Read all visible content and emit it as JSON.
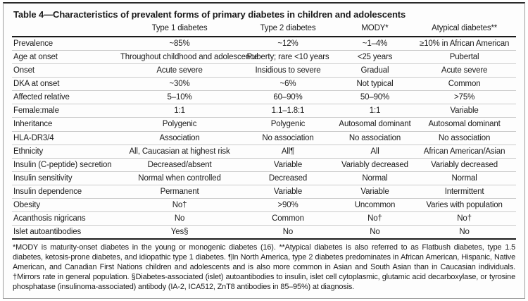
{
  "table": {
    "title": "Table 4—Characteristics of prevalent forms of primary diabetes in children and adolescents",
    "columns": [
      "",
      "Type 1 diabetes",
      "Type 2 diabetes",
      "MODY*",
      "Atypical diabetes**"
    ],
    "rows": [
      {
        "label": "Prevalence",
        "values": [
          "~85%",
          "~12%",
          "~1–4%",
          "≥10% in African American"
        ]
      },
      {
        "label": "Age at onset",
        "values": [
          "Throughout childhood and adolescence",
          "Puberty; rare <10 years",
          "<25 years",
          "Pubertal"
        ]
      },
      {
        "label": "Onset",
        "values": [
          "Acute severe",
          "Insidious to severe",
          "Gradual",
          "Acute severe"
        ]
      },
      {
        "label": "DKA at onset",
        "values": [
          "~30%",
          "~6%",
          "Not typical",
          "Common"
        ]
      },
      {
        "label": "Affected relative",
        "values": [
          "5–10%",
          "60–90%",
          "50–90%",
          ">75%"
        ]
      },
      {
        "label": "Female:male",
        "values": [
          "1:1",
          "1.1–1.8:1",
          "1:1",
          "Variable"
        ]
      },
      {
        "label": "Inheritance",
        "values": [
          "Polygenic",
          "Polygenic",
          "Autosomal dominant",
          "Autosomal dominant"
        ]
      },
      {
        "label": "HLA-DR3/4",
        "values": [
          "Association",
          "No association",
          "No association",
          "No association"
        ]
      },
      {
        "label": "Ethnicity",
        "values": [
          "All, Caucasian at highest risk",
          "All¶",
          "All",
          "African American/Asian"
        ]
      },
      {
        "label": "Insulin (C-peptide) secretion",
        "values": [
          "Decreased/absent",
          "Variable",
          "Variably decreased",
          "Variably decreased"
        ]
      },
      {
        "label": "Insulin sensitivity",
        "values": [
          "Normal when controlled",
          "Decreased",
          "Normal",
          "Normal"
        ]
      },
      {
        "label": "Insulin dependence",
        "values": [
          "Permanent",
          "Variable",
          "Variable",
          "Intermittent"
        ]
      },
      {
        "label": "Obesity",
        "values": [
          "No†",
          ">90%",
          "Uncommon",
          "Varies with population"
        ]
      },
      {
        "label": "Acanthosis nigricans",
        "values": [
          "No",
          "Common",
          "No†",
          "No†"
        ]
      },
      {
        "label": "Islet autoantibodies",
        "values": [
          "Yes§",
          "No",
          "No",
          "No"
        ]
      }
    ],
    "footnote": "*MODY is maturity-onset diabetes in the young or monogenic diabetes (16). **Atypical diabetes is also referred to as Flatbush diabetes, type 1.5 diabetes, ketosis-prone diabetes, and idiopathic type 1 diabetes. ¶In North America, type 2 diabetes predominates in African American, Hispanic, Native American, and Canadian First Nations children and adolescents and is also more common in Asian and South Asian than in Caucasian individuals. †Mirrors rate in general population. §Diabetes-associated (islet) autoantibodies to insulin, islet cell cytoplasmic, glutamic acid decarboxylase, or tyrosine phosphatase (insulinoma-associated) antibody (IA-2, ICA512, ZnT8 antibodies in 85–95%) at diagnosis."
  },
  "colors": {
    "text": "#1b1b1b",
    "rule_dark": "#1a1a1a",
    "row_separator": "#cbcbcb",
    "frame_border": "#9f9f9f",
    "background": "#fdfdfd"
  }
}
